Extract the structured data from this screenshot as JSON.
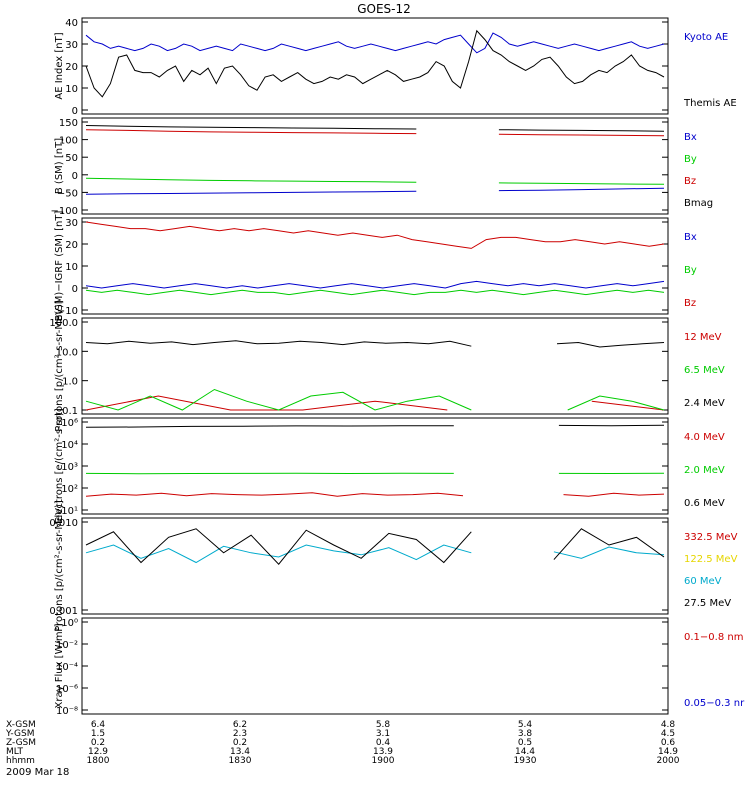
{
  "title": "GOES-12",
  "date_label": "2009 Mar 18",
  "colors": {
    "black": "#000000",
    "red": "#cc0000",
    "green": "#00cc00",
    "blue": "#0000cc",
    "cyan": "#00aacc",
    "yellow": "#e6d600"
  },
  "chart_data": [
    {
      "type": "line",
      "ylabel": "AE Index [nT]",
      "ylim": [
        0,
        40
      ],
      "yticks": [
        "40",
        "30",
        "20",
        "10",
        "0"
      ],
      "x": {
        "start": "1800",
        "end": "2000"
      },
      "series": [
        {
          "name": "Kyoto AE",
          "color": "blue",
          "values": [
            34,
            31,
            30,
            28,
            29,
            28,
            27,
            28,
            30,
            29,
            27,
            28,
            30,
            29,
            27,
            28,
            29,
            28,
            27,
            30,
            29,
            28,
            27,
            28,
            30,
            29,
            28,
            27,
            28,
            29,
            30,
            31,
            29,
            28,
            29,
            30,
            29,
            28,
            27,
            28,
            29,
            30,
            31,
            30,
            32,
            33,
            34,
            30,
            26,
            28,
            35,
            33,
            30,
            29,
            30,
            31,
            30,
            29,
            28,
            29,
            30,
            29,
            28,
            27,
            28,
            29,
            30,
            31,
            29,
            28,
            29,
            30
          ]
        },
        {
          "name": "Themis AE",
          "color": "black",
          "values": [
            20,
            10,
            6,
            12,
            24,
            25,
            18,
            17,
            17,
            15,
            18,
            20,
            13,
            18,
            16,
            19,
            12,
            19,
            20,
            16,
            11,
            9,
            15,
            16,
            13,
            15,
            17,
            14,
            12,
            13,
            15,
            14,
            16,
            15,
            12,
            14,
            16,
            18,
            16,
            13,
            14,
            15,
            17,
            22,
            20,
            13,
            10,
            22,
            36,
            32,
            27,
            25,
            22,
            20,
            18,
            20,
            23,
            24,
            20,
            15,
            12,
            13,
            16,
            18,
            17,
            20,
            22,
            25,
            20,
            18,
            17,
            15
          ]
        }
      ]
    },
    {
      "type": "line",
      "ylabel": "B (SM) [nT]",
      "ylim": [
        -100,
        150
      ],
      "yticks": [
        "150",
        "100",
        "50",
        "0",
        "−50",
        "−100"
      ],
      "series": [
        {
          "name": "Bx",
          "color": "blue",
          "values": [
            -55,
            -54,
            -53,
            -52,
            -51,
            -50,
            -49,
            -48,
            -47,
            -46,
            -45,
            -44,
            -42,
            -40,
            -38
          ]
        },
        {
          "name": "By",
          "color": "green",
          "values": [
            -10,
            -12,
            -14,
            -16,
            -17,
            -18,
            -19,
            -20,
            -21,
            -22,
            -23,
            -24,
            -25,
            -26,
            -27
          ]
        },
        {
          "name": "Bz",
          "color": "red",
          "values": [
            128,
            126,
            124,
            122,
            121,
            120,
            119,
            118,
            117,
            116,
            115,
            114,
            113,
            112,
            111
          ]
        },
        {
          "name": "Bmag",
          "color": "black",
          "values": [
            140,
            138,
            136,
            135,
            134,
            133,
            132,
            131,
            130,
            129,
            128,
            127,
            126,
            125,
            124
          ]
        }
      ]
    },
    {
      "type": "line",
      "ylabel": "B(SM)−IGRF (SM) [nT]",
      "ylim": [
        -10,
        30
      ],
      "yticks": [
        "30",
        "20",
        "10",
        "0",
        "−10"
      ],
      "series": [
        {
          "name": "Bx",
          "color": "blue",
          "values": [
            1,
            0,
            1,
            2,
            1,
            0,
            1,
            2,
            1,
            0,
            1,
            0,
            1,
            2,
            1,
            0,
            1,
            2,
            1,
            0,
            1,
            2,
            1,
            0,
            2,
            3,
            2,
            1,
            2,
            1,
            2,
            1,
            0,
            1,
            2,
            1,
            2,
            3
          ]
        },
        {
          "name": "By",
          "color": "green",
          "values": [
            -1,
            -2,
            -1,
            -2,
            -3,
            -2,
            -1,
            -2,
            -3,
            -2,
            -1,
            -2,
            -2,
            -3,
            -2,
            -1,
            -2,
            -3,
            -2,
            -1,
            -2,
            -3,
            -2,
            -2,
            -1,
            -2,
            -1,
            -2,
            -3,
            -2,
            -1,
            -2,
            -3,
            -2,
            -1,
            -2,
            -1,
            -2
          ]
        },
        {
          "name": "Bz",
          "color": "red",
          "values": [
            30,
            29,
            28,
            27,
            27,
            26,
            27,
            28,
            27,
            26,
            27,
            26,
            27,
            26,
            25,
            26,
            25,
            24,
            25,
            24,
            23,
            24,
            22,
            21,
            20,
            19,
            18,
            22,
            23,
            23,
            22,
            21,
            21,
            22,
            21,
            20,
            21,
            20,
            19,
            20
          ]
        }
      ]
    },
    {
      "type": "line",
      "ylabel": "Protons [p/(cm²-s-sr-MeV)]",
      "ylim": [
        0.1,
        100
      ],
      "log": true,
      "yticks": [
        "100.0",
        "10.0",
        "1.0",
        "0.1"
      ],
      "series": [
        {
          "name": "12 MeV",
          "color": "red",
          "values": [
            0.1,
            0.3,
            0.1,
            0.1,
            0.2,
            0.1,
            0.1,
            0.2,
            0.1
          ]
        },
        {
          "name": "6.5 MeV",
          "color": "green",
          "values": [
            0.2,
            0.1,
            0.3,
            0.1,
            0.5,
            0.2,
            0.1,
            0.3,
            0.4,
            0.1,
            0.2,
            0.3,
            0.1,
            0.5,
            0.2,
            0.1,
            0.3,
            0.2,
            0.1
          ]
        },
        {
          "name": "2.4 MeV",
          "color": "black",
          "values": [
            20,
            18,
            22,
            19,
            21,
            17,
            20,
            23,
            18,
            19,
            22,
            20,
            17,
            21,
            19,
            20,
            18,
            22,
            15,
            17,
            19,
            16,
            18,
            20,
            14,
            16,
            18,
            20
          ]
        }
      ]
    },
    {
      "type": "line",
      "ylabel": "Electrons [e/(cm²-s-sr)]",
      "ylim": [
        10,
        1000000
      ],
      "log": true,
      "yticks": [
        "10⁶",
        "10⁴",
        "10³",
        "10²",
        "10¹"
      ],
      "series": [
        {
          "name": "4.0 MeV",
          "color": "red",
          "values": [
            60,
            80,
            70,
            90,
            65,
            85,
            75,
            70,
            80,
            95,
            60,
            85,
            70,
            75,
            90,
            65,
            80,
            70,
            85,
            75,
            60,
            90,
            70,
            80
          ]
        },
        {
          "name": "2.0 MeV",
          "color": "green",
          "values": [
            1200,
            1150,
            1180,
            1200,
            1220,
            1190,
            1210,
            1200,
            1180,
            1200,
            1190,
            1210
          ]
        },
        {
          "name": "0.6 MeV",
          "color": "black",
          "values": [
            500000,
            520000,
            560000,
            580000,
            600000,
            590000,
            610000,
            620000,
            600000,
            640000,
            620000,
            660000
          ]
        }
      ]
    },
    {
      "type": "line",
      "ylabel": "Protons [p/(cm²-s-sr-MeV)]",
      "ylim": [
        0.001,
        0.1
      ],
      "log": true,
      "yticks": [
        "0.010",
        "0.001"
      ],
      "series": [
        {
          "name": "332.5 MeV",
          "color": "red",
          "values": []
        },
        {
          "name": "122.5 MeV",
          "color": "yellow",
          "values": []
        },
        {
          "name": "60 MeV",
          "color": "cyan",
          "values": [
            0.02,
            0.03,
            0.015,
            0.025,
            0.012,
            0.028,
            0.02,
            0.016,
            0.03,
            0.022,
            0.018,
            0.026,
            0.014,
            0.03,
            0.02,
            0.017,
            0.028,
            0.021,
            0.015,
            0.027,
            0.02,
            0.018
          ]
        },
        {
          "name": "27.5 MeV",
          "color": "black",
          "values": [
            0.03,
            0.06,
            0.012,
            0.045,
            0.07,
            0.02,
            0.05,
            0.011,
            0.065,
            0.03,
            0.015,
            0.055,
            0.04,
            0.012,
            0.06,
            0.025,
            0.05,
            0.014,
            0.07,
            0.03,
            0.045,
            0.016
          ]
        }
      ]
    },
    {
      "type": "line",
      "ylabel": "Xray Flux [W/m²]",
      "ylim": [
        1e-08,
        1
      ],
      "log": true,
      "yticks": [
        "10⁰",
        "10⁻²",
        "10⁻⁴",
        "10⁻⁶",
        "10⁻⁸"
      ],
      "series": [
        {
          "name": "0.1−0.8 nm",
          "color": "red",
          "values": []
        },
        {
          "name": "0.05−0.3 nr",
          "color": "blue",
          "values": []
        }
      ]
    }
  ],
  "ephemeris": {
    "rows": [
      {
        "label": "X-GSM",
        "values": [
          "6.4",
          "6.2",
          "5.8",
          "5.4",
          "4.8"
        ]
      },
      {
        "label": "Y-GSM",
        "values": [
          "1.5",
          "2.3",
          "3.1",
          "3.8",
          "4.5"
        ]
      },
      {
        "label": "Z-GSM",
        "values": [
          "0.2",
          "0.2",
          "0.4",
          "0.5",
          "0.6"
        ]
      },
      {
        "label": "MLT",
        "values": [
          "12.9",
          "13.4",
          "13.9",
          "14.4",
          "14.9"
        ]
      },
      {
        "label": "hhmm",
        "values": [
          "1800",
          "1830",
          "1900",
          "1930",
          "2000"
        ]
      }
    ]
  }
}
